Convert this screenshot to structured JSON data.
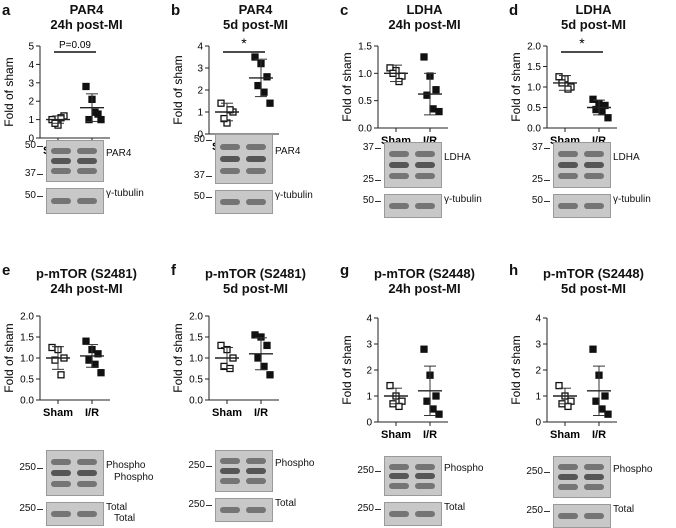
{
  "chart_data": [
    {
      "letter": "a",
      "title": "PAR4",
      "subtitle": "24h post-MI",
      "type": "scatter",
      "ylabel": "Fold of sham",
      "categories": [
        "Sham",
        "I/R"
      ],
      "ylim": [
        0,
        5
      ],
      "yticks": [
        "0",
        "1",
        "2",
        "3",
        "4",
        "5"
      ],
      "series": [
        {
          "values": [
            1.0,
            0.7,
            1.2,
            0.8,
            1.1
          ],
          "mean": 1.0,
          "sd": 0.2,
          "marker": "open-square"
        },
        {
          "values": [
            2.8,
            2.1,
            1.3,
            1.0,
            1.4,
            1.0
          ],
          "mean": 1.65,
          "sd": 0.75,
          "marker": "filled-square"
        }
      ],
      "annotation": "P=0.09",
      "blots": [
        {
          "markers": [
            "50",
            "37"
          ],
          "label": "PAR4"
        },
        {
          "markers": [
            "50"
          ],
          "label": "γ-tubulin"
        }
      ]
    },
    {
      "letter": "b",
      "title": "PAR4",
      "subtitle": "5d post-MI",
      "type": "scatter",
      "ylabel": "Fold of sham",
      "categories": [
        "Sham",
        "I/R"
      ],
      "ylim": [
        0,
        4
      ],
      "yticks": [
        "0",
        "1",
        "2",
        "3",
        "4"
      ],
      "series": [
        {
          "values": [
            1.4,
            0.5,
            1.0,
            0.7,
            1.1
          ],
          "mean": 1.0,
          "sd": 0.4,
          "marker": "open-square"
        },
        {
          "values": [
            3.5,
            3.2,
            2.6,
            2.2,
            1.9,
            1.4
          ],
          "mean": 2.55,
          "sd": 0.85,
          "marker": "filled-square"
        }
      ],
      "annotation": "*",
      "blots": [
        {
          "markers": [
            "50",
            "37"
          ],
          "label": "PAR4"
        },
        {
          "markers": [
            "50"
          ],
          "label": "γ-tubulin"
        }
      ]
    },
    {
      "letter": "c",
      "title": "LDHA",
      "subtitle": "24h post-MI",
      "type": "scatter",
      "ylabel": "Fold of sham",
      "categories": [
        "Sham",
        "I/R"
      ],
      "ylim": [
        0,
        1.5
      ],
      "yticks": [
        "0.0",
        "0.5",
        "1.0",
        "1.5"
      ],
      "series": [
        {
          "values": [
            1.1,
            1.05,
            0.95,
            1.0,
            0.85
          ],
          "mean": 1.0,
          "sd": 0.15,
          "marker": "open-square"
        },
        {
          "values": [
            1.3,
            0.95,
            0.7,
            0.6,
            0.35,
            0.3
          ],
          "mean": 0.62,
          "sd": 0.38,
          "marker": "filled-square"
        }
      ],
      "annotation": "",
      "blots": [
        {
          "markers": [
            "37",
            "25"
          ],
          "label": "LDHA"
        },
        {
          "markers": [
            "50"
          ],
          "label": "γ-tubulin"
        }
      ]
    },
    {
      "letter": "d",
      "title": "LDHA",
      "subtitle": "5d post-MI",
      "type": "scatter",
      "ylabel": "Fold of sham",
      "categories": [
        "Sham",
        "I/R"
      ],
      "ylim": [
        0,
        2.0
      ],
      "yticks": [
        "0.0",
        "0.5",
        "1.0",
        "1.5",
        "2.0"
      ],
      "series": [
        {
          "values": [
            1.25,
            1.2,
            1.0,
            1.1,
            0.95
          ],
          "mean": 1.1,
          "sd": 0.18,
          "marker": "open-square"
        },
        {
          "values": [
            0.7,
            0.6,
            0.55,
            0.45,
            0.4,
            0.25
          ],
          "mean": 0.5,
          "sd": 0.18,
          "marker": "filled-square"
        }
      ],
      "annotation": "*",
      "blots": [
        {
          "markers": [
            "37",
            "25"
          ],
          "label": "LDHA"
        },
        {
          "markers": [
            "50"
          ],
          "label": "γ-tubulin"
        }
      ]
    },
    {
      "letter": "e",
      "title": "p-mTOR (S2481)",
      "subtitle": "24h post-MI",
      "type": "scatter",
      "ylabel": "Fold of sham",
      "categories": [
        "Sham",
        "I/R"
      ],
      "ylim": [
        0,
        2.0
      ],
      "yticks": [
        "0.0",
        "0.5",
        "1.0",
        "1.5",
        "2.0"
      ],
      "series": [
        {
          "values": [
            1.25,
            1.2,
            1.0,
            0.95,
            0.6
          ],
          "mean": 1.0,
          "sd": 0.27,
          "marker": "open-square"
        },
        {
          "values": [
            1.4,
            1.2,
            1.1,
            0.95,
            0.85,
            0.65
          ],
          "mean": 1.05,
          "sd": 0.27,
          "marker": "filled-square"
        }
      ],
      "annotation": "",
      "blots": [
        {
          "markers": [
            "250"
          ],
          "label": "Phospho",
          "label2": "Phospho"
        },
        {
          "markers": [
            "250"
          ],
          "label": "Total",
          "label2": "Total"
        }
      ]
    },
    {
      "letter": "f",
      "title": "p-mTOR (S2481)",
      "subtitle": "5d post-MI",
      "type": "scatter",
      "ylabel": "Fold of sham",
      "categories": [
        "Sham",
        "I/R"
      ],
      "ylim": [
        0,
        2.0
      ],
      "yticks": [
        "0.0",
        "0.5",
        "1.0",
        "1.5",
        "2.0"
      ],
      "series": [
        {
          "values": [
            1.3,
            1.2,
            1.0,
            0.8,
            0.75
          ],
          "mean": 1.0,
          "sd": 0.25,
          "marker": "open-square"
        },
        {
          "values": [
            1.55,
            1.5,
            1.3,
            1.0,
            0.8,
            0.6
          ],
          "mean": 1.1,
          "sd": 0.38,
          "marker": "filled-square"
        }
      ],
      "annotation": "",
      "blots": [
        {
          "markers": [
            "250"
          ],
          "label": "Phospho"
        },
        {
          "markers": [
            "250"
          ],
          "label": "Total"
        }
      ]
    },
    {
      "letter": "g",
      "title": "p-mTOR (S2448)",
      "subtitle": "24h post-MI",
      "type": "scatter",
      "ylabel": "Fold of sham",
      "categories": [
        "Sham",
        "I/R"
      ],
      "ylim": [
        0,
        4
      ],
      "yticks": [
        "0",
        "1",
        "2",
        "3",
        "4"
      ],
      "series": [
        {
          "values": [
            1.4,
            1.0,
            0.8,
            0.7,
            0.6
          ],
          "mean": 1.0,
          "sd": 0.3,
          "marker": "open-square"
        },
        {
          "values": [
            2.8,
            1.8,
            1.0,
            0.8,
            0.5,
            0.3
          ],
          "mean": 1.2,
          "sd": 0.95,
          "marker": "filled-square"
        }
      ],
      "annotation": "",
      "blots": [
        {
          "markers": [
            "250"
          ],
          "label": "Phospho"
        },
        {
          "markers": [
            "250"
          ],
          "label": "Total"
        }
      ]
    },
    {
      "letter": "h",
      "title": "p-mTOR (S2448)",
      "subtitle": "5d post-MI",
      "type": "scatter",
      "ylabel": "Fold of sham",
      "categories": [
        "Sham",
        "I/R"
      ],
      "ylim": [
        0,
        4
      ],
      "yticks": [
        "0",
        "1",
        "2",
        "3",
        "4"
      ],
      "series": [
        {
          "values": [
            1.4,
            1.0,
            0.8,
            0.7,
            0.6
          ],
          "mean": 1.0,
          "sd": 0.3,
          "marker": "open-square"
        },
        {
          "values": [
            2.8,
            1.8,
            1.0,
            0.8,
            0.5,
            0.3
          ],
          "mean": 1.2,
          "sd": 0.95,
          "marker": "filled-square"
        }
      ],
      "annotation": "",
      "blots": [
        {
          "markers": [
            "250"
          ],
          "label": "Phospho"
        },
        {
          "markers": [
            "250"
          ],
          "label": "Total"
        }
      ]
    }
  ]
}
